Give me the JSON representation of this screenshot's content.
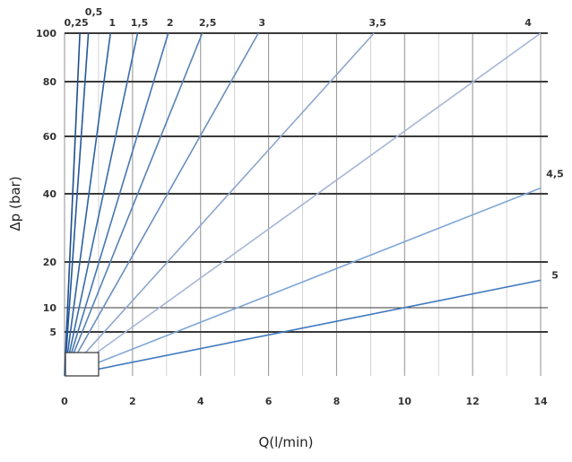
{
  "chart_data": {
    "type": "line",
    "title": "",
    "xlabel": "Q(l/min)",
    "ylabel": "Δp (bar)",
    "xlim": [
      0,
      14
    ],
    "x_ticks": [
      0,
      2,
      4,
      6,
      8,
      10,
      12,
      14
    ],
    "x_tick_labels": [
      "0",
      "2",
      "4",
      "6",
      "8",
      "10",
      "12",
      "14"
    ],
    "y_ticks": [
      5,
      10,
      20,
      40,
      60,
      80,
      100
    ],
    "y_tick_labels": [
      "5",
      "10",
      "20",
      "40",
      "60",
      "80",
      "100"
    ],
    "grid": true,
    "legend": "curve labels at line ends",
    "series": [
      {
        "name": "0,25",
        "color": "#1f4e8c",
        "x": [
          0,
          0.45
        ],
        "y": [
          0,
          100
        ]
      },
      {
        "name": "0,5",
        "color": "#24589a",
        "x": [
          0,
          0.7
        ],
        "y": [
          0,
          100
        ]
      },
      {
        "name": "1",
        "color": "#2d62a4",
        "x": [
          0,
          1.35
        ],
        "y": [
          0,
          100
        ]
      },
      {
        "name": "1,5",
        "color": "#386caa",
        "x": [
          0,
          2.15
        ],
        "y": [
          0,
          100
        ]
      },
      {
        "name": "2",
        "color": "#4676b0",
        "x": [
          0,
          3.05
        ],
        "y": [
          0,
          100
        ]
      },
      {
        "name": "2,5",
        "color": "#5582b6",
        "x": [
          0,
          4.05
        ],
        "y": [
          0,
          100
        ]
      },
      {
        "name": "3",
        "color": "#6a8fbe",
        "x": [
          0,
          5.7
        ],
        "y": [
          0,
          100
        ]
      },
      {
        "name": "3,5",
        "color": "#8ea6cc",
        "x": [
          0,
          9.1
        ],
        "y": [
          0,
          100
        ]
      },
      {
        "name": "4",
        "color": "#a6b6d6",
        "x": [
          0,
          14
        ],
        "y": [
          0,
          100
        ]
      },
      {
        "name": "4,5",
        "color": "#7ea6d6",
        "x": [
          0,
          14
        ],
        "y": [
          0,
          42
        ]
      },
      {
        "name": "5",
        "color": "#3f78bf",
        "x": [
          0,
          14
        ],
        "y": [
          0,
          16
        ]
      }
    ]
  }
}
